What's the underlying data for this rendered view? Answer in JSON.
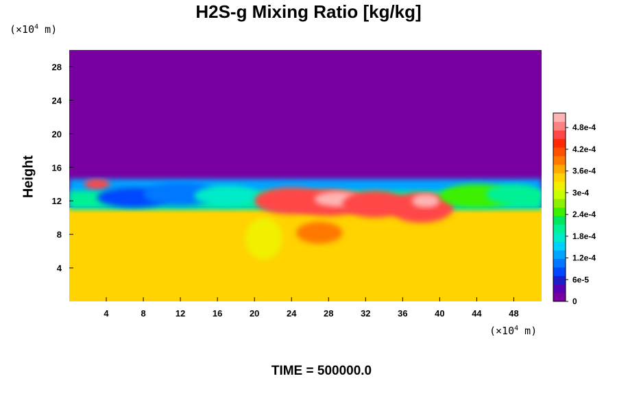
{
  "chart_data": {
    "type": "heatmap",
    "title": "H2S-g Mixing Ratio [kg/kg]",
    "ylabel": "Height",
    "x_unit": {
      "prefix": "(×10",
      "exp": "4",
      "suffix": " m)"
    },
    "y_unit": {
      "prefix": "(×10",
      "exp": "4",
      "suffix": " m)"
    },
    "xlim": [
      0,
      51
    ],
    "ylim": [
      0,
      30
    ],
    "x_ticks": [
      4,
      8,
      12,
      16,
      20,
      24,
      28,
      32,
      36,
      40,
      44,
      48
    ],
    "y_ticks": [
      4,
      8,
      12,
      16,
      20,
      24,
      28
    ],
    "colorbar": {
      "min": 0,
      "max": 0.00052,
      "tick_labels": [
        "0",
        "6e-5",
        "1.2e-4",
        "1.8e-4",
        "2.4e-4",
        "3e-4",
        "3.6e-4",
        "4.2e-4",
        "4.8e-4"
      ],
      "tick_values": [
        0,
        6e-05,
        0.00012,
        0.00018,
        0.00024,
        0.0003,
        0.00036,
        0.00042,
        0.00048
      ],
      "colors": [
        "#7800a0",
        "#5a00b4",
        "#1e1ec8",
        "#0046ff",
        "#0078ff",
        "#00a5ff",
        "#00d2ff",
        "#00ebc8",
        "#00f096",
        "#00e65a",
        "#3cf000",
        "#8cf000",
        "#c8ff00",
        "#f0f000",
        "#ffd200",
        "#ffaa00",
        "#ff7800",
        "#ff5000",
        "#ff2800",
        "#ff4646",
        "#ff8282",
        "#ffb4b4"
      ]
    },
    "background_value": 0,
    "lower_layer_value": 0.00035,
    "features": [
      {
        "x": 3,
        "y": 14,
        "rx": 1.4,
        "ry": 0.6,
        "value": 0.00045
      },
      {
        "x": 7,
        "y": 12.4,
        "rx": 4,
        "ry": 1.2,
        "value": 9e-05
      },
      {
        "x": 12,
        "y": 12.8,
        "rx": 4,
        "ry": 1.4,
        "value": 0.0001
      },
      {
        "x": 17,
        "y": 12.6,
        "rx": 3.5,
        "ry": 1.2,
        "value": 0.00017
      },
      {
        "x": 24,
        "y": 12.0,
        "rx": 4,
        "ry": 1.6,
        "value": 0.00046
      },
      {
        "x": 28,
        "y": 11.8,
        "rx": 4,
        "ry": 1.6,
        "value": 0.00047
      },
      {
        "x": 29,
        "y": 12.2,
        "rx": 2.5,
        "ry": 0.9,
        "value": 0.00052
      },
      {
        "x": 33,
        "y": 11.6,
        "rx": 3.5,
        "ry": 1.6,
        "value": 0.00045
      },
      {
        "x": 38,
        "y": 11.2,
        "rx": 3.5,
        "ry": 1.8,
        "value": 0.00046
      },
      {
        "x": 38.5,
        "y": 12.0,
        "rx": 1.5,
        "ry": 0.8,
        "value": 0.00052
      },
      {
        "x": 44,
        "y": 12.6,
        "rx": 4,
        "ry": 1.4,
        "value": 0.00025
      },
      {
        "x": 48,
        "y": 12.8,
        "rx": 3,
        "ry": 1.2,
        "value": 0.00019
      },
      {
        "x": 21,
        "y": 7.5,
        "rx": 2,
        "ry": 2.5,
        "value": 0.00033
      },
      {
        "x": 27,
        "y": 8.2,
        "rx": 2.5,
        "ry": 1.3,
        "value": 0.0004
      }
    ],
    "annotation": "TIME = 500000.0"
  }
}
